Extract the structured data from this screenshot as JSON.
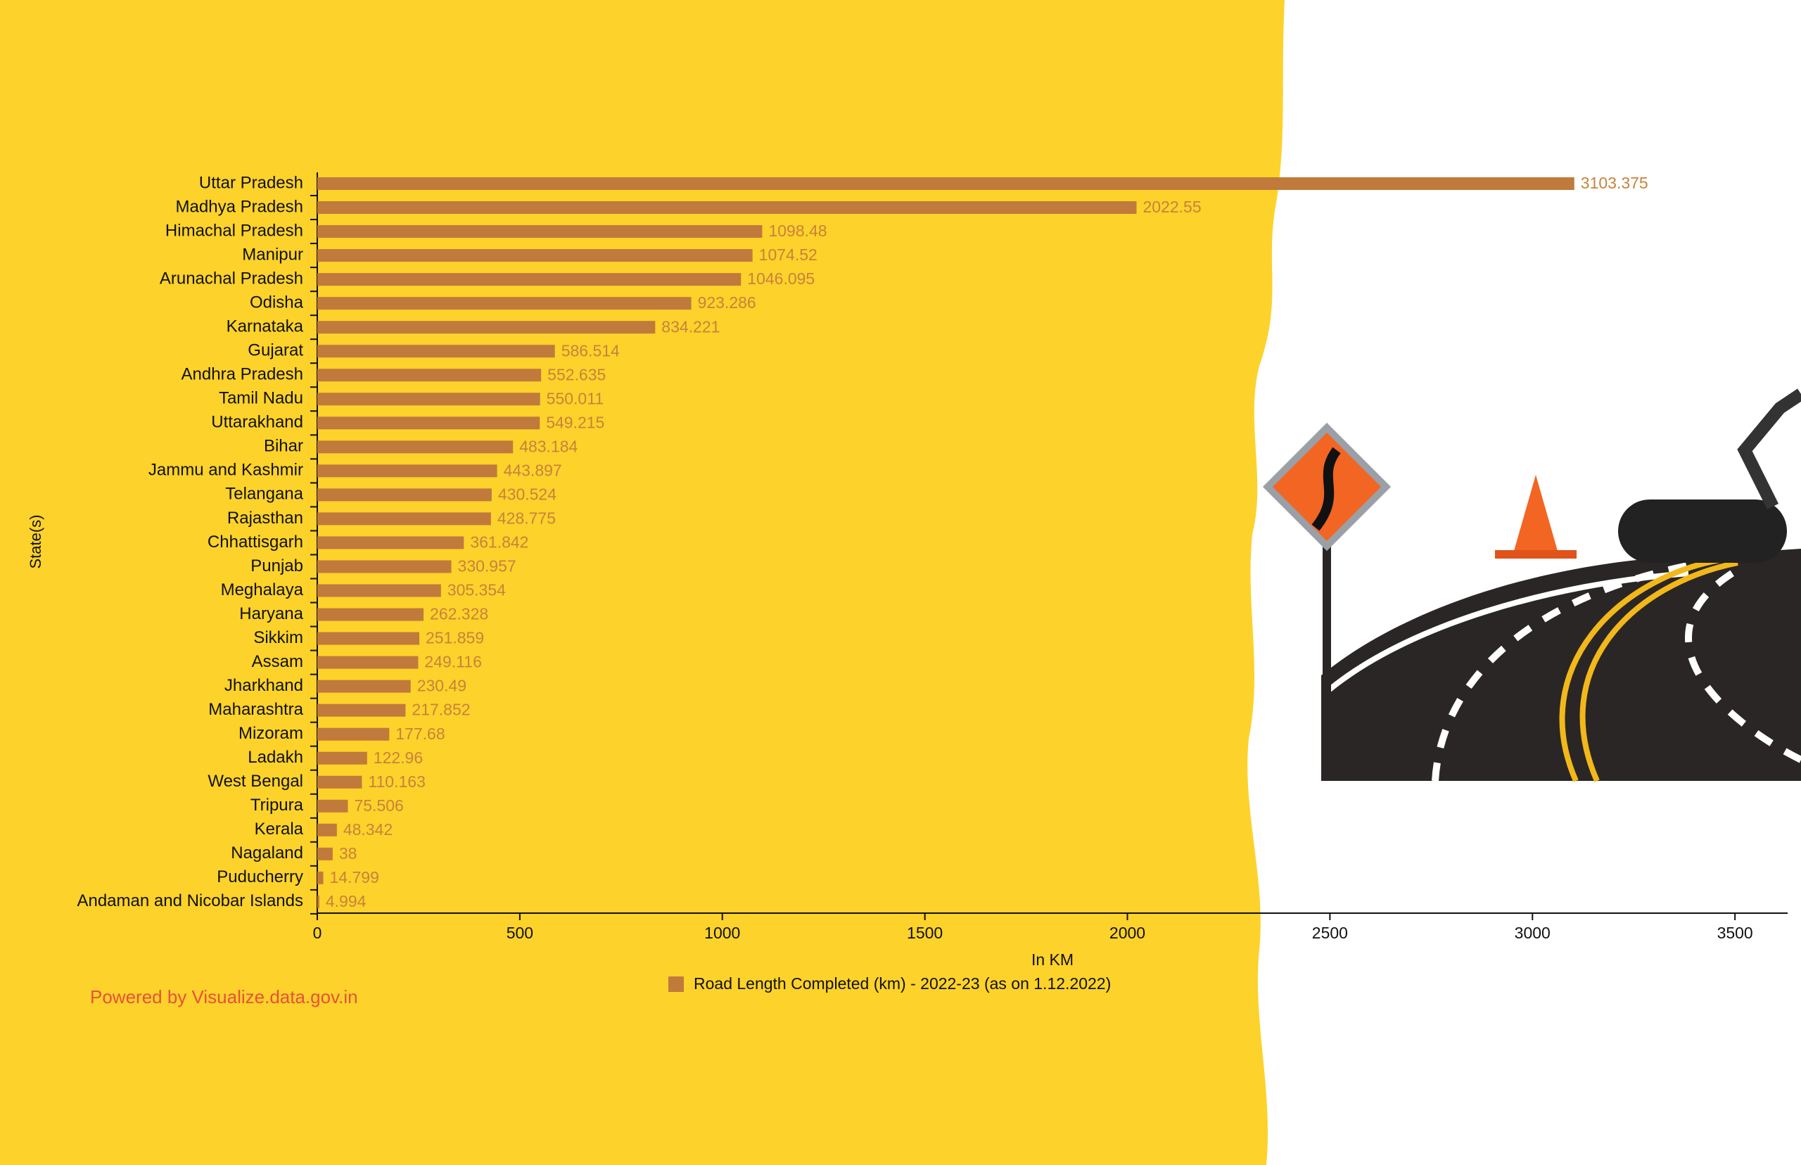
{
  "chart_data": {
    "type": "bar",
    "orientation": "horizontal",
    "categories": [
      "Uttar Pradesh",
      "Madhya Pradesh",
      "Himachal Pradesh",
      "Manipur",
      "Arunachal Pradesh",
      "Odisha",
      "Karnataka",
      "Gujarat",
      "Andhra Pradesh",
      "Tamil Nadu",
      "Uttarakhand",
      "Bihar",
      "Jammu and Kashmir",
      "Telangana",
      "Rajasthan",
      "Chhattisgarh",
      "Punjab",
      "Meghalaya",
      "Haryana",
      "Sikkim",
      "Assam",
      "Jharkhand",
      "Maharashtra",
      "Mizoram",
      "Ladakh",
      "West Bengal",
      "Tripura",
      "Kerala",
      "Nagaland",
      "Puducherry",
      "Andaman and Nicobar Islands"
    ],
    "series": [
      {
        "name": "Road Length Completed (km) - 2022-23 (as on 1.12.2022)",
        "color": "#c07a3c",
        "values": [
          3103.375,
          2022.55,
          1098.48,
          1074.52,
          1046.095,
          923.286,
          834.221,
          586.514,
          552.635,
          550.011,
          549.215,
          483.184,
          443.897,
          430.524,
          428.775,
          361.842,
          330.957,
          305.354,
          262.328,
          251.859,
          249.116,
          230.49,
          217.852,
          177.68,
          122.96,
          110.163,
          75.506,
          48.342,
          38,
          14.799,
          4.994
        ]
      }
    ],
    "xlim": [
      0,
      3630
    ],
    "xticks": [
      0,
      500,
      1000,
      1500,
      2000,
      2500,
      3000,
      3500
    ],
    "xlabel": "In KM",
    "ylabel": "State(s)",
    "legend": "bottom"
  },
  "credit": "Powered by Visualize.data.gov.in"
}
